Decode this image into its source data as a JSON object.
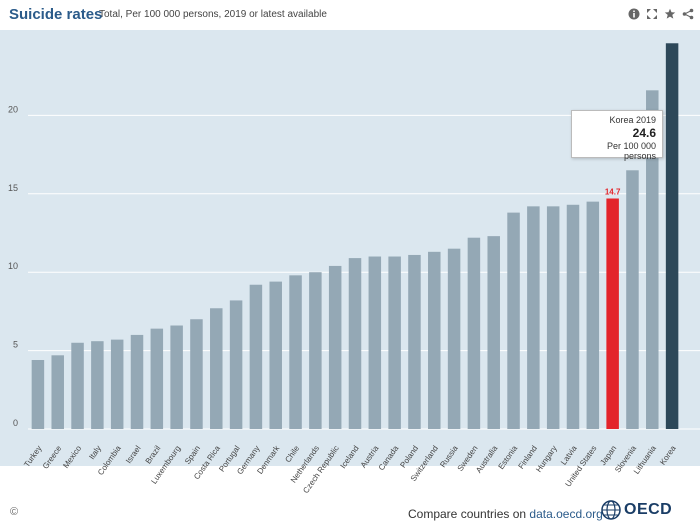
{
  "header": {
    "title": "Suicide rates",
    "subtitle": "Total, Per 100 000 persons, 2019 or latest available"
  },
  "toolbar": {
    "icons": [
      "info-icon",
      "expand-icon",
      "star-icon",
      "share-icon"
    ]
  },
  "tooltip": {
    "heading": "Korea 2019",
    "value": "24.6",
    "unit": "Per 100 000 persons"
  },
  "footer": {
    "copyright": "©",
    "compare_prefix": "Compare countries on ",
    "compare_link": "data.oecd.org",
    "logo_text": "OECD"
  },
  "colors": {
    "bar_default": "#94a8b5",
    "bar_highlight": "#e3242b",
    "bar_selected": "#2d4859",
    "background": "#dbe7ef",
    "gridline": "#ffffff",
    "title": "#2b5b8a"
  },
  "chart_data": {
    "type": "bar",
    "title": "Suicide rates",
    "subtitle": "Total, Per 100 000 persons, 2019 or latest available",
    "xlabel": "",
    "ylabel": "",
    "ylim": [
      0,
      25
    ],
    "yticks": [
      0,
      5,
      10,
      15,
      20
    ],
    "grid": true,
    "categories": [
      "Turkey",
      "Greece",
      "Mexico",
      "Italy",
      "Colombia",
      "Israel",
      "Brazil",
      "Luxembourg",
      "Spain",
      "Costa Rica",
      "Portugal",
      "Germany",
      "Denmark",
      "Chile",
      "Netherlands",
      "Czech Republic",
      "Iceland",
      "Austria",
      "Canada",
      "Poland",
      "Switzerland",
      "Russia",
      "Sweden",
      "Australia",
      "Estonia",
      "Finland",
      "Hungary",
      "Latvia",
      "United States",
      "Japan",
      "Slovenia",
      "Lithuania",
      "Korea"
    ],
    "values": [
      4.4,
      4.7,
      5.5,
      5.6,
      5.7,
      6.0,
      6.4,
      6.6,
      7.0,
      7.7,
      8.2,
      9.2,
      9.4,
      9.8,
      10.0,
      10.4,
      10.9,
      11.0,
      11.0,
      11.1,
      11.3,
      11.5,
      12.2,
      12.3,
      13.8,
      14.2,
      14.2,
      14.3,
      14.5,
      14.7,
      16.5,
      21.6,
      24.6
    ],
    "highlight": {
      "category": "Japan",
      "label": "14.7"
    },
    "selected": "Korea"
  }
}
